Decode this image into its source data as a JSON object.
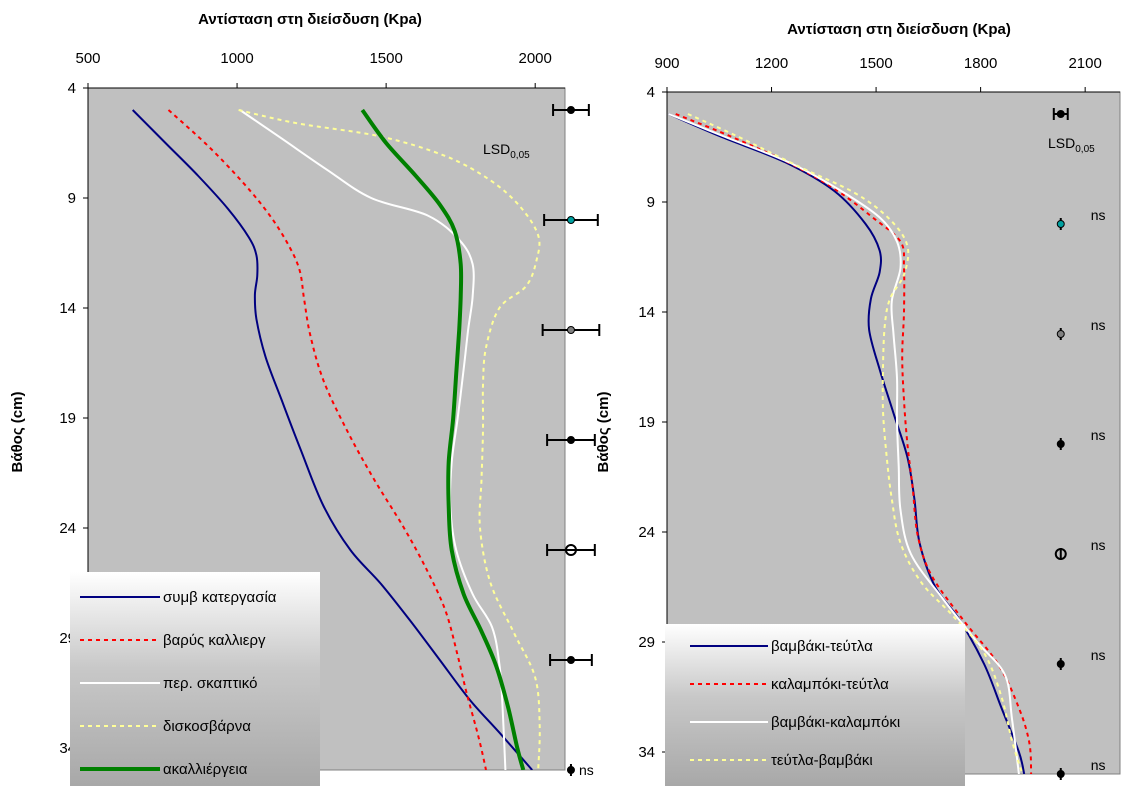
{
  "chart_data": [
    {
      "type": "line",
      "title": "Αντίσταση στη διείσδυση (Kpa)",
      "xlabel": "",
      "ylabel": "Βάθος (cm)",
      "xlim": [
        500,
        2100
      ],
      "ylim": [
        4,
        35
      ],
      "y_reversed": true,
      "x_axis_position": "top",
      "x_ticks": [
        "500",
        "1000",
        "1500",
        "2000"
      ],
      "y_ticks": [
        "4",
        "9",
        "14",
        "19",
        "24",
        "29",
        "34"
      ],
      "grid": false,
      "legend_position": "bottom-left",
      "series": [
        {
          "name": "συμβ κατεργασία",
          "color": "#000080",
          "dash": "solid",
          "width": 2,
          "points": [
            [
              650,
              5
            ],
            [
              760,
              6.5
            ],
            [
              870,
              8
            ],
            [
              970,
              9.5
            ],
            [
              1040,
              10.8
            ],
            [
              1065,
              11.6
            ],
            [
              1068,
              12.5
            ],
            [
              1060,
              13.4
            ],
            [
              1065,
              14.5
            ],
            [
              1095,
              16.2
            ],
            [
              1150,
              18.2
            ],
            [
              1215,
              20.5
            ],
            [
              1290,
              23
            ],
            [
              1380,
              25
            ],
            [
              1480,
              26.5
            ],
            [
              1580,
              28.2
            ],
            [
              1680,
              30
            ],
            [
              1780,
              31.8
            ],
            [
              1880,
              33.3
            ],
            [
              1990,
              35
            ]
          ]
        },
        {
          "name": "βαρύς καλλιεργ",
          "color": "#ff0000",
          "dash": "4,4",
          "width": 2,
          "points": [
            [
              770,
              5
            ],
            [
              900,
              6.6
            ],
            [
              1020,
              8.3
            ],
            [
              1110,
              9.8
            ],
            [
              1175,
              11.2
            ],
            [
              1210,
              12.3
            ],
            [
              1225,
              13.6
            ],
            [
              1245,
              15.2
            ],
            [
              1290,
              17.3
            ],
            [
              1370,
              19.6
            ],
            [
              1460,
              21.8
            ],
            [
              1560,
              24
            ],
            [
              1640,
              26
            ],
            [
              1700,
              27.8
            ],
            [
              1740,
              29.8
            ],
            [
              1770,
              31.5
            ],
            [
              1810,
              33.5
            ],
            [
              1835,
              35
            ]
          ]
        },
        {
          "name": "περ. σκαπτικό",
          "color": "#ffffff",
          "dash": "solid",
          "width": 2,
          "points": [
            [
              1010,
              5
            ],
            [
              1150,
              6.3
            ],
            [
              1300,
              7.7
            ],
            [
              1450,
              9
            ],
            [
              1640,
              9.8
            ],
            [
              1745,
              10.9
            ],
            [
              1790,
              12
            ],
            [
              1790,
              13.5
            ],
            [
              1775,
              15
            ],
            [
              1760,
              16.8
            ],
            [
              1740,
              19
            ],
            [
              1720,
              21
            ],
            [
              1715,
              23
            ],
            [
              1735,
              25
            ],
            [
              1790,
              27
            ],
            [
              1855,
              28.5
            ],
            [
              1880,
              30.2
            ],
            [
              1890,
              32
            ],
            [
              1900,
              35
            ]
          ]
        },
        {
          "name": "δισκοσβάρνα",
          "color": "#ffff99",
          "dash": "4,4",
          "width": 2,
          "points": [
            [
              1005,
              5
            ],
            [
              1200,
              5.6
            ],
            [
              1480,
              6.2
            ],
            [
              1700,
              7.1
            ],
            [
              1850,
              8.2
            ],
            [
              1950,
              9.4
            ],
            [
              2010,
              10.7
            ],
            [
              2005,
              11.8
            ],
            [
              1970,
              13
            ],
            [
              1880,
              14
            ],
            [
              1835,
              15.8
            ],
            [
              1825,
              17.5
            ],
            [
              1825,
              19.5
            ],
            [
              1820,
              21.8
            ],
            [
              1815,
              24
            ],
            [
              1850,
              26.5
            ],
            [
              1930,
              28.8
            ],
            [
              2000,
              30.8
            ],
            [
              2015,
              33
            ],
            [
              2010,
              35
            ]
          ]
        },
        {
          "name": "ακαλλιέργεια",
          "color": "#008000",
          "dash": "solid",
          "width": 4,
          "points": [
            [
              1420,
              5
            ],
            [
              1500,
              6.5
            ],
            [
              1600,
              8
            ],
            [
              1680,
              9.3
            ],
            [
              1730,
              10.5
            ],
            [
              1750,
              12
            ],
            [
              1750,
              13.5
            ],
            [
              1745,
              15
            ],
            [
              1735,
              17
            ],
            [
              1725,
              19
            ],
            [
              1710,
              21
            ],
            [
              1710,
              23
            ],
            [
              1720,
              25
            ],
            [
              1760,
              27
            ],
            [
              1820,
              28.7
            ],
            [
              1870,
              30.3
            ],
            [
              1910,
              32.2
            ],
            [
              1940,
              34
            ],
            [
              1960,
              35
            ]
          ]
        }
      ],
      "lsd": {
        "label": "LSD",
        "subscript": "0,05",
        "ns_label": "ns",
        "bars": [
          {
            "y": 5,
            "center": 2120,
            "half_width": 60,
            "marker_color": "#000000",
            "marker": "small"
          },
          {
            "y": 10,
            "center": 2120,
            "half_width": 90,
            "marker_color": "#00a0a0",
            "marker": "small"
          },
          {
            "y": 15,
            "center": 2120,
            "half_width": 95,
            "marker_color": "#808080",
            "marker": "small"
          },
          {
            "y": 20,
            "center": 2120,
            "half_width": 80,
            "marker_color": "#000000",
            "marker": "small"
          },
          {
            "y": 25,
            "center": 2120,
            "half_width": 80,
            "marker_color": "#000000",
            "marker": "open"
          },
          {
            "y": 30,
            "center": 2120,
            "half_width": 70,
            "marker_color": "#000000",
            "marker": "small"
          },
          {
            "y": 35,
            "center": 2120,
            "half_width": 0,
            "marker_color": "#000000",
            "marker": "small",
            "ns": true
          }
        ]
      }
    },
    {
      "type": "line",
      "title": "Αντίσταση στη διείσδυση (Kpa)",
      "xlabel": "",
      "ylabel": "Βάθος (cm)",
      "xlim": [
        900,
        2200
      ],
      "ylim": [
        4,
        35
      ],
      "y_reversed": true,
      "x_axis_position": "top",
      "x_ticks": [
        "900",
        "1200",
        "1500",
        "1800",
        "2100"
      ],
      "y_ticks": [
        "4",
        "9",
        "14",
        "19",
        "24",
        "29",
        "34"
      ],
      "grid": false,
      "legend_position": "bottom-left",
      "series": [
        {
          "name": "βαμβάκι-τεύτλα",
          "color": "#000080",
          "dash": "solid",
          "width": 2,
          "points": [
            [
              905,
              5
            ],
            [
              1050,
              6
            ],
            [
              1240,
              7.2
            ],
            [
              1380,
              8.5
            ],
            [
              1470,
              10
            ],
            [
              1510,
              11.2
            ],
            [
              1510,
              12.2
            ],
            [
              1485,
              13.4
            ],
            [
              1480,
              14.8
            ],
            [
              1510,
              16.6
            ],
            [
              1550,
              18.6
            ],
            [
              1590,
              20.6
            ],
            [
              1610,
              22.5
            ],
            [
              1625,
              24.5
            ],
            [
              1670,
              26.5
            ],
            [
              1740,
              28
            ],
            [
              1810,
              30
            ],
            [
              1860,
              32
            ],
            [
              1910,
              34
            ],
            [
              1925,
              35
            ]
          ]
        },
        {
          "name": "καλαμπόκι-τεύτλα",
          "color": "#ff0000",
          "dash": "4,4",
          "width": 2,
          "points": [
            [
              925,
              5
            ],
            [
              1080,
              6
            ],
            [
              1260,
              7.3
            ],
            [
              1390,
              8.5
            ],
            [
              1490,
              9.7
            ],
            [
              1570,
              10.8
            ],
            [
              1580,
              12
            ],
            [
              1580,
              14
            ],
            [
              1575,
              16
            ],
            [
              1580,
              18
            ],
            [
              1590,
              20
            ],
            [
              1605,
              22
            ],
            [
              1620,
              24.2
            ],
            [
              1660,
              26
            ],
            [
              1750,
              28
            ],
            [
              1850,
              30
            ],
            [
              1910,
              32
            ],
            [
              1940,
              33.6
            ],
            [
              1945,
              35
            ]
          ]
        },
        {
          "name": "βαμβάκι-καλαμπόκι",
          "color": "#ffffff",
          "dash": "solid",
          "width": 2,
          "points": [
            [
              905,
              5
            ],
            [
              1060,
              6
            ],
            [
              1250,
              7.2
            ],
            [
              1400,
              8.5
            ],
            [
              1510,
              9.7
            ],
            [
              1560,
              10.8
            ],
            [
              1570,
              12
            ],
            [
              1545,
              13.5
            ],
            [
              1550,
              15
            ],
            [
              1560,
              17
            ],
            [
              1560,
              19
            ],
            [
              1565,
              21
            ],
            [
              1570,
              23
            ],
            [
              1600,
              25
            ],
            [
              1690,
              27
            ],
            [
              1790,
              29
            ],
            [
              1870,
              30.5
            ],
            [
              1890,
              32.5
            ],
            [
              1910,
              35
            ]
          ]
        },
        {
          "name": "τεύτλα-βαμβάκι",
          "color": "#ffff99",
          "dash": "4,4",
          "width": 2,
          "points": [
            [
              960,
              5
            ],
            [
              1100,
              6
            ],
            [
              1280,
              7.4
            ],
            [
              1440,
              8.6
            ],
            [
              1540,
              9.8
            ],
            [
              1590,
              11
            ],
            [
              1580,
              12.3
            ],
            [
              1540,
              13.4
            ],
            [
              1525,
              14.6
            ],
            [
              1520,
              16.5
            ],
            [
              1520,
              18.5
            ],
            [
              1530,
              20.5
            ],
            [
              1545,
              22.5
            ],
            [
              1570,
              24.5
            ],
            [
              1630,
              26.3
            ],
            [
              1720,
              27.8
            ],
            [
              1810,
              29.5
            ],
            [
              1860,
              31.5
            ],
            [
              1890,
              33.5
            ],
            [
              1920,
              35
            ]
          ]
        }
      ],
      "lsd": {
        "label": "LSD",
        "subscript": "0,05",
        "ns_label": "ns",
        "bars": [
          {
            "y": 5,
            "center": 2030,
            "half_width": 20,
            "marker_color": "#000000",
            "marker": "small"
          },
          {
            "y": 10,
            "center": 2030,
            "half_width": 0,
            "marker_color": "#00a0a0",
            "marker": "small",
            "ns": true
          },
          {
            "y": 15,
            "center": 2030,
            "half_width": 0,
            "marker_color": "#808080",
            "marker": "small",
            "ns": true
          },
          {
            "y": 20,
            "center": 2030,
            "half_width": 0,
            "marker_color": "#000000",
            "marker": "small",
            "ns": true
          },
          {
            "y": 25,
            "center": 2030,
            "half_width": 0,
            "marker_color": "#000000",
            "marker": "open",
            "ns": true
          },
          {
            "y": 30,
            "center": 2030,
            "half_width": 0,
            "marker_color": "#000000",
            "marker": "small",
            "ns": true
          },
          {
            "y": 35,
            "center": 2030,
            "half_width": 0,
            "marker_color": "#000000",
            "marker": "small",
            "ns": true
          }
        ]
      }
    }
  ],
  "colors": {
    "plot_bg": "#c0c0c0",
    "legend_top": "#ffffff",
    "legend_bottom": "#b0b0b0"
  }
}
